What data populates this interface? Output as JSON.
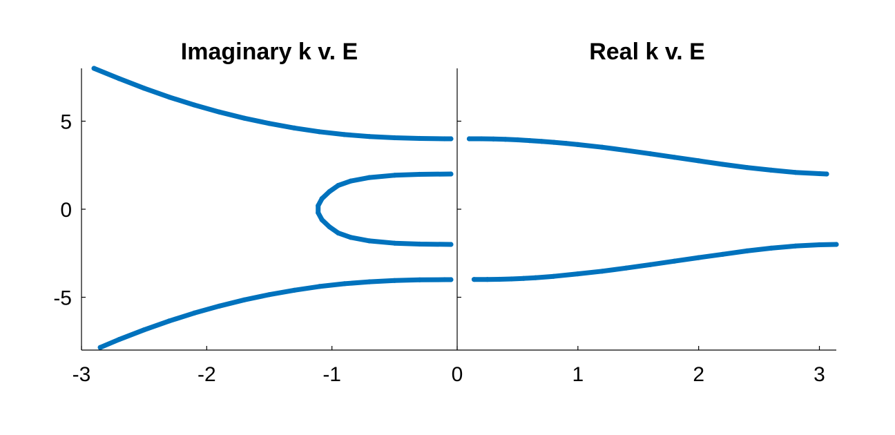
{
  "chart_data": [
    {
      "type": "scatter",
      "title": "Imaginary k v. E",
      "xlabel": "",
      "ylabel": "",
      "xlim": [
        -3,
        0
      ],
      "ylim": [
        -8,
        8
      ],
      "xticks": [
        -3,
        -2,
        -1
      ],
      "xtick_labels": [
        "-3",
        "-2",
        "-1"
      ],
      "yticks": [
        -5,
        0,
        5
      ],
      "ytick_labels": [
        "-5",
        "0",
        "5"
      ],
      "grid": false,
      "color": "#0072BD",
      "series": [
        {
          "points": [
            [
              -2.9,
              8.0
            ],
            [
              -2.7,
              7.42
            ],
            [
              -2.5,
              6.87
            ],
            [
              -2.3,
              6.37
            ],
            [
              -2.1,
              5.92
            ],
            [
              -1.9,
              5.52
            ],
            [
              -1.7,
              5.17
            ],
            [
              -1.5,
              4.87
            ],
            [
              -1.3,
              4.61
            ],
            [
              -1.1,
              4.4
            ],
            [
              -0.9,
              4.24
            ],
            [
              -0.7,
              4.13
            ],
            [
              -0.5,
              4.06
            ],
            [
              -0.3,
              4.02
            ],
            [
              -0.1,
              4.0
            ],
            [
              -0.05,
              4.0
            ]
          ]
        },
        {
          "points": [
            [
              -0.05,
              2.0
            ],
            [
              -0.3,
              1.98
            ],
            [
              -0.5,
              1.93
            ],
            [
              -0.7,
              1.8
            ],
            [
              -0.85,
              1.6
            ],
            [
              -0.95,
              1.35
            ],
            [
              -1.02,
              1.0
            ],
            [
              -1.08,
              0.6
            ],
            [
              -1.11,
              0.2
            ],
            [
              -1.11,
              -0.2
            ],
            [
              -1.08,
              -0.6
            ],
            [
              -1.02,
              -1.0
            ],
            [
              -0.95,
              -1.35
            ],
            [
              -0.85,
              -1.6
            ],
            [
              -0.7,
              -1.8
            ],
            [
              -0.5,
              -1.93
            ],
            [
              -0.3,
              -1.98
            ],
            [
              -0.05,
              -2.0
            ]
          ]
        },
        {
          "points": [
            [
              -2.85,
              -7.85
            ],
            [
              -2.7,
              -7.4
            ],
            [
              -2.5,
              -6.85
            ],
            [
              -2.3,
              -6.35
            ],
            [
              -2.1,
              -5.9
            ],
            [
              -1.9,
              -5.5
            ],
            [
              -1.7,
              -5.15
            ],
            [
              -1.5,
              -4.85
            ],
            [
              -1.3,
              -4.6
            ],
            [
              -1.1,
              -4.39
            ],
            [
              -0.9,
              -4.23
            ],
            [
              -0.7,
              -4.12
            ],
            [
              -0.5,
              -4.05
            ],
            [
              -0.3,
              -4.01
            ],
            [
              -0.1,
              -4.0
            ],
            [
              -0.05,
              -4.0
            ]
          ]
        }
      ]
    },
    {
      "type": "scatter",
      "title": "Real k v. E",
      "xlabel": "",
      "ylabel": "",
      "xlim": [
        0,
        3.14
      ],
      "ylim": [
        -8,
        8
      ],
      "xticks": [
        0,
        1,
        2,
        3
      ],
      "xtick_labels": [
        "0",
        "1",
        "2",
        "3"
      ],
      "grid": false,
      "color": "#0072BD",
      "series": [
        {
          "points": [
            [
              0.1,
              4.0
            ],
            [
              0.2,
              4.0
            ],
            [
              0.3,
              3.99
            ],
            [
              0.4,
              3.97
            ],
            [
              0.5,
              3.94
            ],
            [
              0.6,
              3.9
            ],
            [
              0.7,
              3.85
            ],
            [
              0.8,
              3.8
            ],
            [
              0.9,
              3.74
            ],
            [
              1.0,
              3.67
            ],
            [
              1.2,
              3.52
            ],
            [
              1.4,
              3.34
            ],
            [
              1.6,
              3.15
            ],
            [
              1.8,
              2.95
            ],
            [
              2.0,
              2.75
            ],
            [
              2.2,
              2.55
            ],
            [
              2.4,
              2.37
            ],
            [
              2.6,
              2.22
            ],
            [
              2.8,
              2.09
            ],
            [
              3.0,
              2.02
            ],
            [
              3.06,
              2.0
            ]
          ]
        },
        {
          "points": [
            [
              0.14,
              -3.99
            ],
            [
              0.25,
              -3.99
            ],
            [
              0.35,
              -3.98
            ],
            [
              0.45,
              -3.96
            ],
            [
              0.55,
              -3.93
            ],
            [
              0.65,
              -3.89
            ],
            [
              0.8,
              -3.81
            ],
            [
              1.0,
              -3.67
            ],
            [
              1.2,
              -3.52
            ],
            [
              1.4,
              -3.34
            ],
            [
              1.6,
              -3.15
            ],
            [
              1.8,
              -2.95
            ],
            [
              2.0,
              -2.75
            ],
            [
              2.2,
              -2.56
            ],
            [
              2.4,
              -2.37
            ],
            [
              2.6,
              -2.21
            ],
            [
              2.8,
              -2.09
            ],
            [
              3.0,
              -2.02
            ],
            [
              3.14,
              -2.0
            ]
          ]
        }
      ]
    }
  ]
}
